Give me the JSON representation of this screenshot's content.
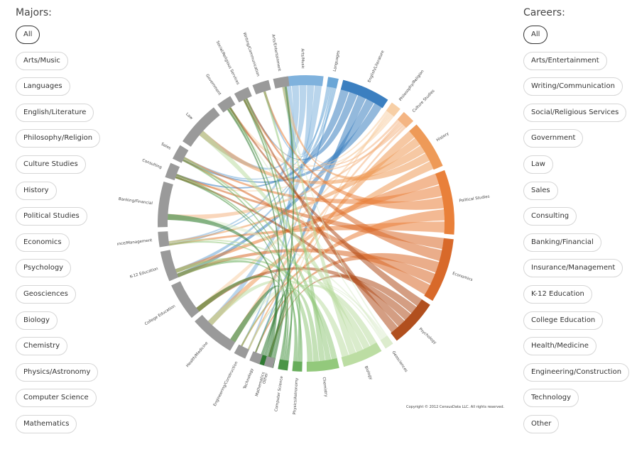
{
  "majors": {
    "title": "Majors:",
    "items": [
      "All",
      "Arts/Music",
      "Languages",
      "English/Literature",
      "Philosophy/Religion",
      "Culture Studies",
      "History",
      "Political Studies",
      "Economics",
      "Psychology",
      "Geosciences",
      "Biology",
      "Chemistry",
      "Physics/Astronomy",
      "Computer Science",
      "Mathematics"
    ],
    "selected": "All"
  },
  "careers": {
    "title": "Careers:",
    "items": [
      "All",
      "Arts/Entertainment",
      "Writing/Communication",
      "Social/Religious Services",
      "Government",
      "Law",
      "Sales",
      "Consulting",
      "Banking/Financial",
      "Insurance/Management",
      "K-12 Education",
      "College Education",
      "Health/Medicine",
      "Engineering/Construction",
      "Technology",
      "Other"
    ],
    "selected": "All"
  },
  "chord": {
    "majors": [
      {
        "name": "Arts/Music",
        "weight": 5,
        "color": "#7fb2dd"
      },
      {
        "name": "Languages",
        "weight": 1.3,
        "color": "#6aa6d6"
      },
      {
        "name": "English/Literature",
        "weight": 6,
        "color": "#3b7fc0"
      },
      {
        "name": "Philosophy/Religion",
        "weight": 1.3,
        "color": "#f7cfa6"
      },
      {
        "name": "Culture Studies",
        "weight": 1.6,
        "color": "#f4b583"
      },
      {
        "name": "History",
        "weight": 6,
        "color": "#ee9a58"
      },
      {
        "name": "Political Studies",
        "weight": 8,
        "color": "#e9803a"
      },
      {
        "name": "Economics",
        "weight": 8,
        "color": "#d8692a"
      },
      {
        "name": "Psychology",
        "weight": 6,
        "color": "#b14f1e"
      },
      {
        "name": "Geosciences",
        "weight": 1.1,
        "color": "#dceccd"
      },
      {
        "name": "Biology",
        "weight": 5,
        "color": "#bcdda3"
      },
      {
        "name": "Chemistry",
        "weight": 4,
        "color": "#93c97c"
      },
      {
        "name": "Physics/Astronomy",
        "weight": 1.2,
        "color": "#67ad5b"
      },
      {
        "name": "Computer Science",
        "weight": 1.2,
        "color": "#4a9546"
      },
      {
        "name": "Mathematics",
        "weight": 2,
        "color": "#2f7a32"
      }
    ],
    "careers": [
      {
        "name": "Other",
        "weight": 1.2
      },
      {
        "name": "Technology",
        "weight": 1.4
      },
      {
        "name": "Engineering/Construction",
        "weight": 1.6
      },
      {
        "name": "Health/Medicine",
        "weight": 6
      },
      {
        "name": "College Education",
        "weight": 5
      },
      {
        "name": "K-12 Education",
        "weight": 4
      },
      {
        "name": "Insurance/Management",
        "weight": 2
      },
      {
        "name": "Banking/Financial",
        "weight": 6
      },
      {
        "name": "Consulting",
        "weight": 2
      },
      {
        "name": "Sales",
        "weight": 2
      },
      {
        "name": "Law",
        "weight": 6
      },
      {
        "name": "Government",
        "weight": 2
      },
      {
        "name": "Social/Religious Services",
        "weight": 2
      },
      {
        "name": "Writing/Communication",
        "weight": 2.2
      },
      {
        "name": "Arts/Entertainment",
        "weight": 2
      }
    ],
    "career_arc_color": "#9a9a9a"
  },
  "copyright": "Copyright © 2012 CensusData LLC. All rights reserved."
}
